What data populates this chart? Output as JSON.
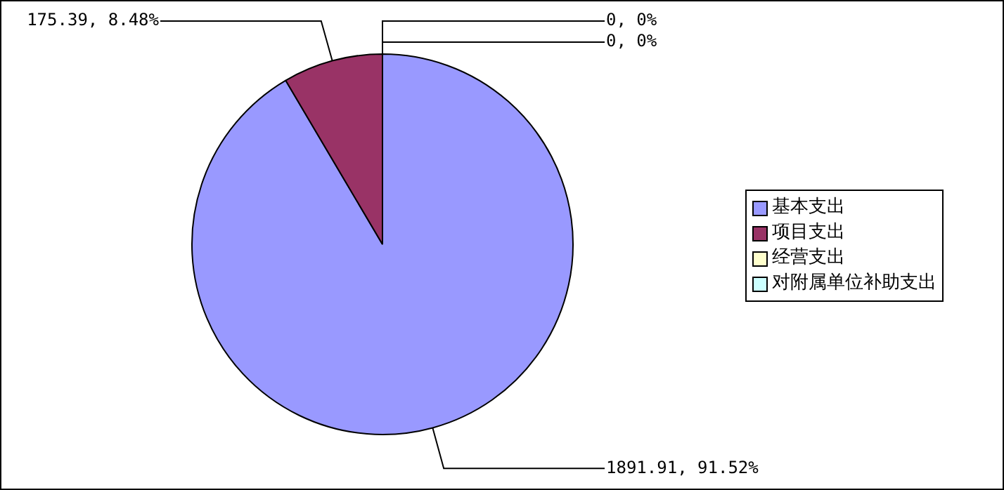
{
  "chart_data": {
    "type": "pie",
    "categories": [
      "基本支出",
      "项目支出",
      "经营支出",
      "对附属单位补助支出"
    ],
    "values": [
      1891.91,
      175.39,
      0,
      0
    ],
    "colors": [
      "#9999ff",
      "#993366",
      "#ffffcc",
      "#ccffff"
    ],
    "value_labels": [
      "1891.91, 91.52%",
      "175.39, 8.48%",
      "0, 0%",
      "0, 0%"
    ],
    "legend": "right"
  }
}
